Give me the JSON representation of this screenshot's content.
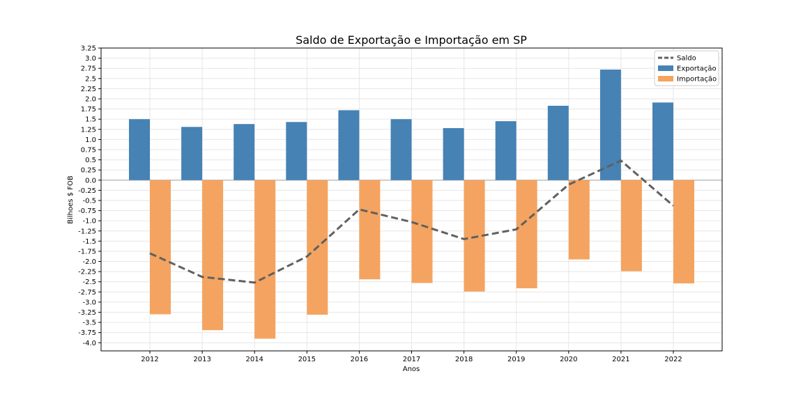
{
  "chart_data": {
    "type": "bar",
    "title": "Saldo de Exportação e Importação em SP",
    "xlabel": "Anos",
    "ylabel": "Bilhoes $ FOB",
    "categories": [
      "2012",
      "2013",
      "2014",
      "2015",
      "2016",
      "2017",
      "2018",
      "2019",
      "2020",
      "2021",
      "2022"
    ],
    "series": [
      {
        "name": "Exportação",
        "kind": "bar",
        "color": "#4682b4",
        "values": [
          1.5,
          1.31,
          1.38,
          1.43,
          1.72,
          1.5,
          1.28,
          1.45,
          1.83,
          2.72,
          1.91
        ]
      },
      {
        "name": "Importação",
        "kind": "bar",
        "color": "#f4a460",
        "values": [
          -3.3,
          -3.69,
          -3.9,
          -3.31,
          -2.44,
          -2.53,
          -2.74,
          -2.66,
          -1.95,
          -2.24,
          -2.54
        ]
      },
      {
        "name": "Saldo",
        "kind": "line",
        "style": "dashed",
        "color": "#606060",
        "values": [
          -1.8,
          -2.38,
          -2.52,
          -1.88,
          -0.72,
          -1.03,
          -1.45,
          -1.21,
          -0.11,
          0.48,
          -0.63
        ]
      }
    ],
    "ylim": [
      -4.2,
      3.25
    ],
    "yticks": [
      3.25,
      3.0,
      2.75,
      2.5,
      2.25,
      2.0,
      1.75,
      1.5,
      1.25,
      1.0,
      0.75,
      0.5,
      0.25,
      0.0,
      -0.25,
      -0.5,
      -0.75,
      -1.0,
      -1.25,
      -1.5,
      -1.75,
      -2.0,
      -2.25,
      -2.5,
      -2.75,
      -3.0,
      -3.25,
      -3.5,
      -3.75,
      -4.0
    ],
    "ytick_labels": [
      "3.25",
      "3.0",
      "2.75",
      "2.5",
      "2.25",
      "2.0",
      "1.75",
      "1.5",
      "1.25",
      "1.0",
      "0.75",
      "0.5",
      "0.25",
      "0.0",
      "-0.25",
      "-0.5",
      "-0.75",
      "-1.0",
      "-1.25",
      "-1.5",
      "-1.75",
      "-2.0",
      "-2.25",
      "-2.5",
      "-2.75",
      "-3.0",
      "-3.25",
      "-3.5",
      "-3.75",
      "-4.0"
    ],
    "grid": true,
    "legend": {
      "placement": "top-right",
      "entries": [
        "Saldo",
        "Exportação",
        "Importação"
      ]
    }
  }
}
